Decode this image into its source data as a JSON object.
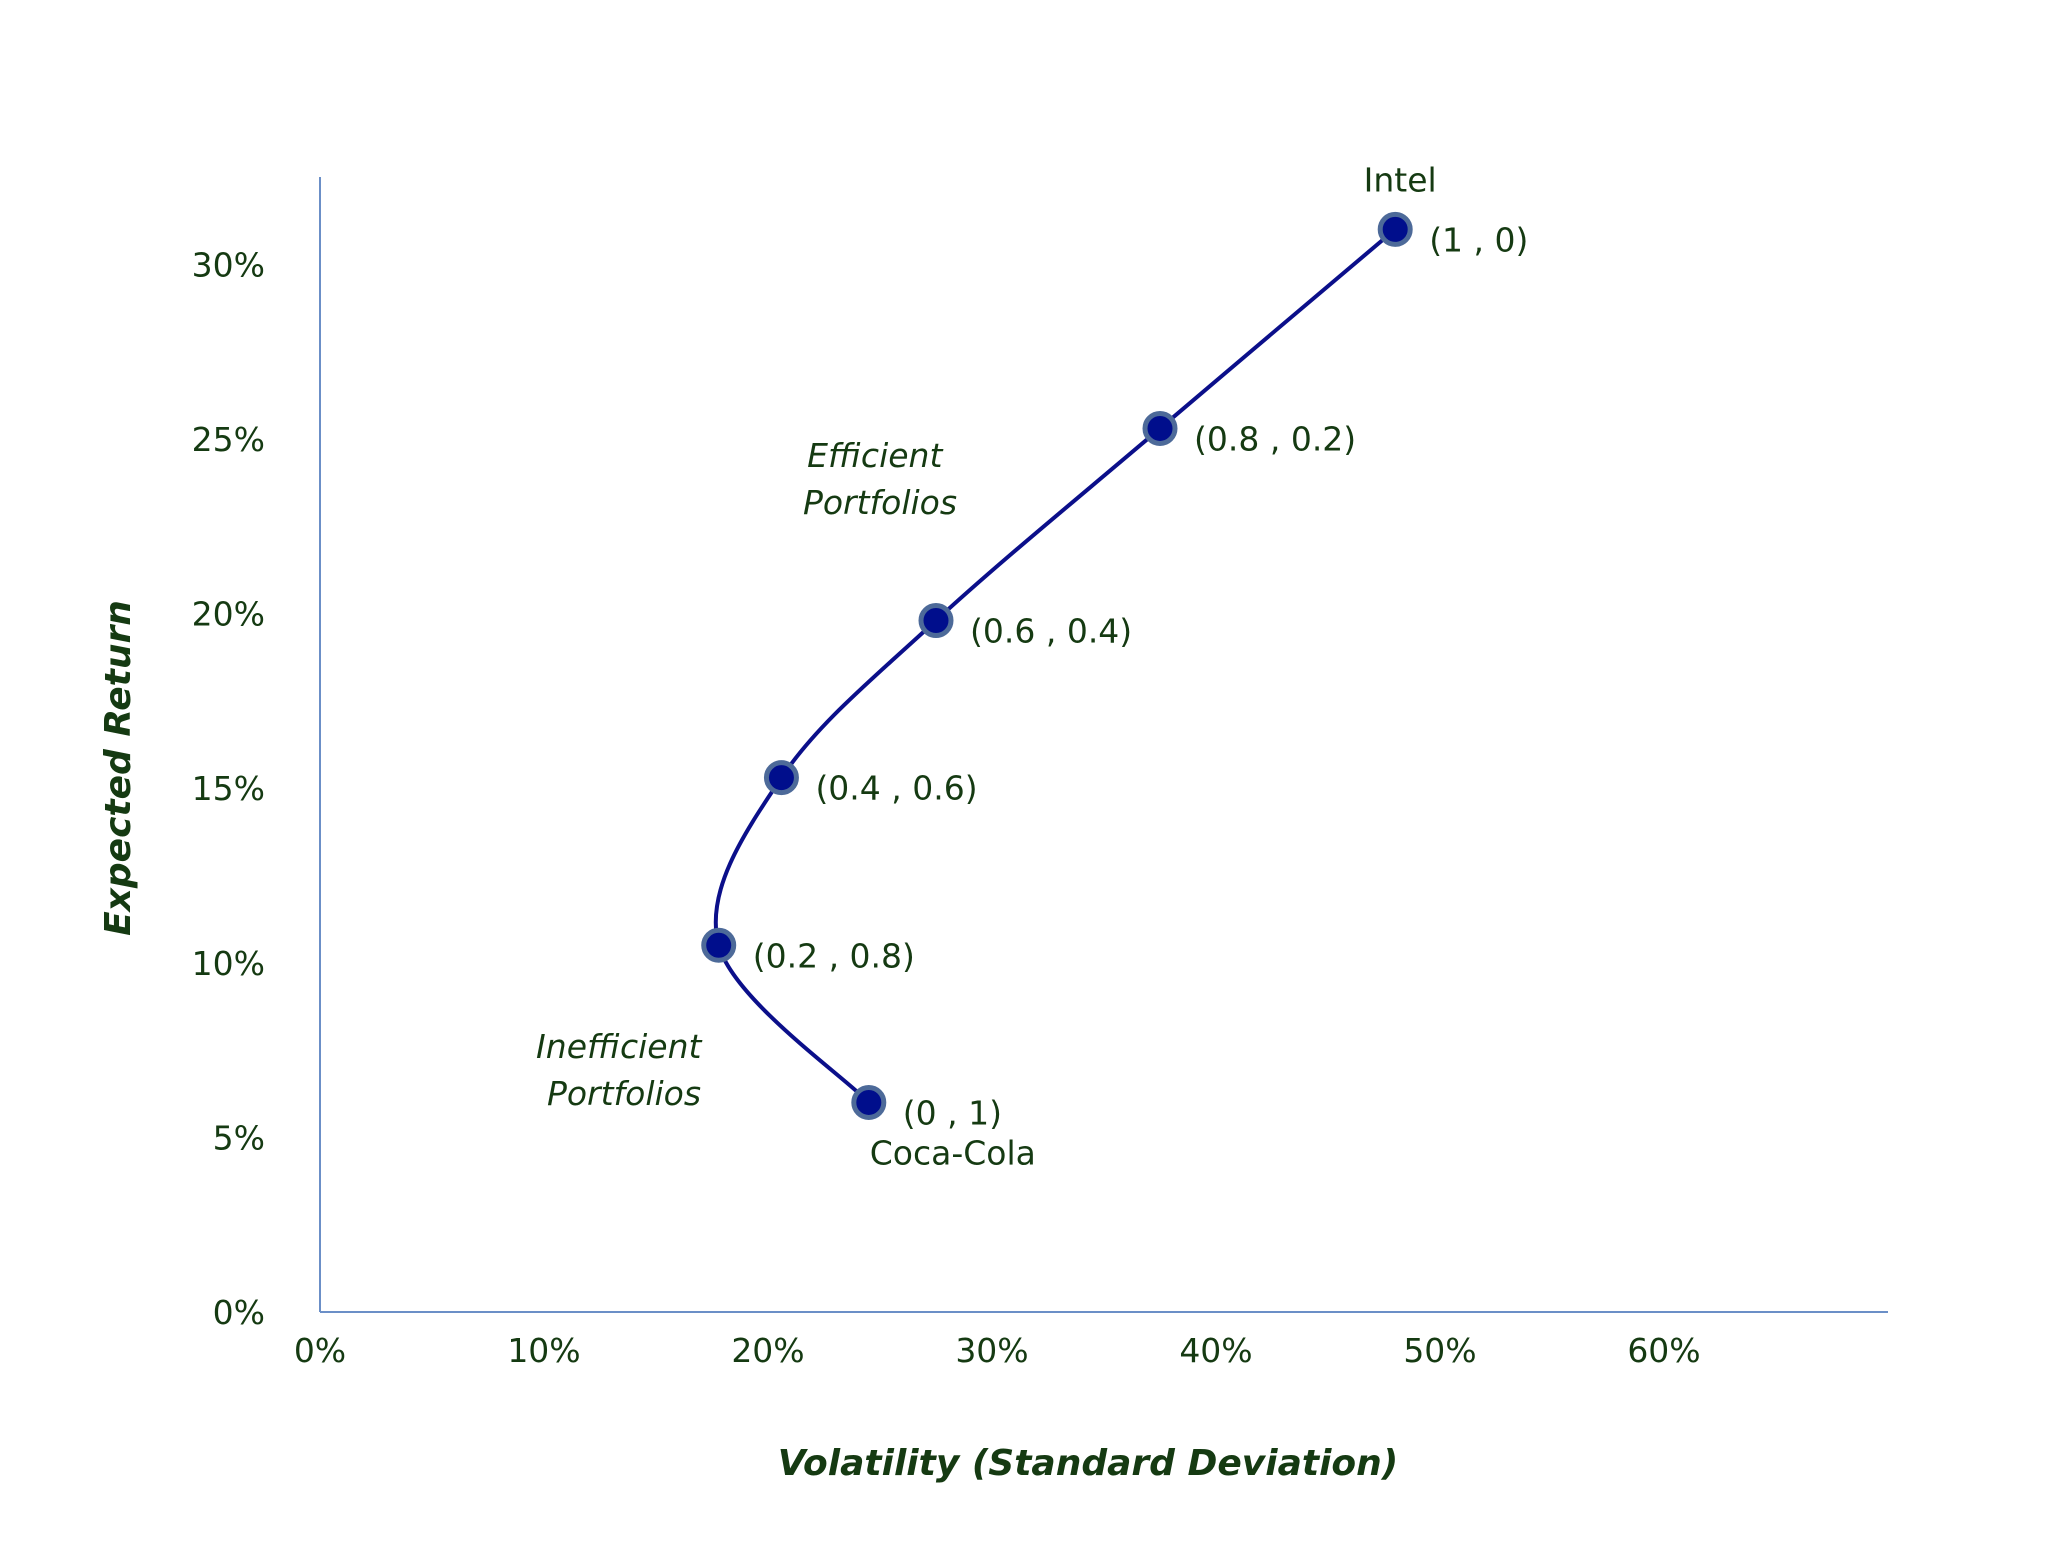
{
  "chart_data": {
    "type": "line",
    "title": "",
    "xlabel": "Volatility (Standard Deviation)",
    "ylabel": "Expected Return",
    "xlim": [
      0,
      70
    ],
    "ylim": [
      0,
      32.5
    ],
    "x_ticks": [
      "0%",
      "10%",
      "20%",
      "30%",
      "40%",
      "50%",
      "60%"
    ],
    "y_ticks": [
      "0%",
      "5%",
      "10%",
      "15%",
      "20%",
      "25%",
      "30%"
    ],
    "grid": false,
    "series": [
      {
        "color": "#0b0f8a",
        "points": [
          {
            "x": 24.5,
            "y": 6.0,
            "label": "(0 , 1)",
            "name": "Coca-Cola"
          },
          {
            "x": 17.8,
            "y": 10.5,
            "label": "(0.2 , 0.8)"
          },
          {
            "x": 20.6,
            "y": 15.3,
            "label": "(0.4 , 0.6)"
          },
          {
            "x": 27.5,
            "y": 19.8,
            "label": "(0.6 , 0.4)"
          },
          {
            "x": 37.5,
            "y": 25.3,
            "label": "(0.8 , 0.2)"
          },
          {
            "x": 48.0,
            "y": 31.0,
            "label": "(1 , 0)",
            "name": "Intel"
          }
        ]
      }
    ],
    "annotations": [
      {
        "lines": [
          "Efficient",
          "Portfolios"
        ]
      },
      {
        "lines": [
          "Inefficient",
          "Portfolios"
        ]
      }
    ],
    "colors": {
      "axis": "#6b8fc7",
      "text": "#153a12",
      "curve": "#0b0f8a",
      "marker_fill": "#000e8c",
      "marker_ring": "#4d6a99"
    }
  }
}
